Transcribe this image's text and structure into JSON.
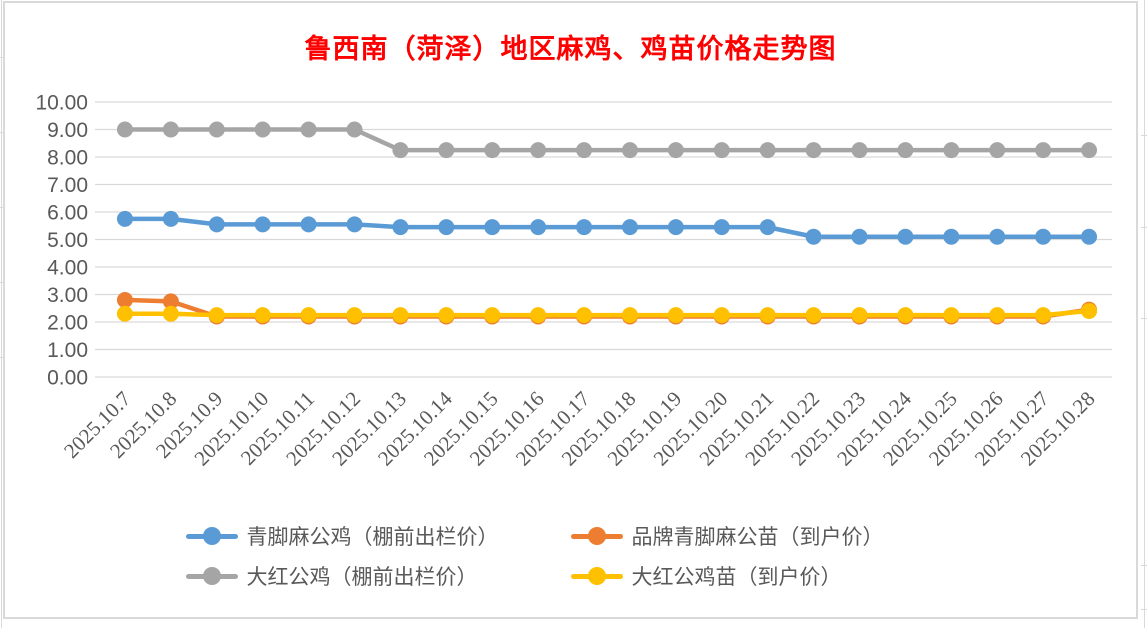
{
  "title": {
    "text": "鲁西南（菏泽）地区麻鸡、鸡苗价格走势图",
    "color": "#FF0000"
  },
  "chart_data": {
    "type": "line",
    "title": "鲁西南（菏泽）地区麻鸡、鸡苗价格走势图",
    "categories": [
      "2025.10.7",
      "2025.10.8",
      "2025.10.9",
      "2025.10.10",
      "2025.10.11",
      "2025.10.12",
      "2025.10.13",
      "2025.10.14",
      "2025.10.15",
      "2025.10.16",
      "2025.10.17",
      "2025.10.18",
      "2025.10.19",
      "2025.10.20",
      "2025.10.21",
      "2025.10.22",
      "2025.10.23",
      "2025.10.24",
      "2025.10.25",
      "2025.10.26",
      "2025.10.27",
      "2025.10.28"
    ],
    "series": [
      {
        "name": "青脚麻公鸡（棚前出栏价）",
        "color": "#5B9BD5",
        "values": [
          5.75,
          5.75,
          5.55,
          5.55,
          5.55,
          5.55,
          5.45,
          5.45,
          5.45,
          5.45,
          5.45,
          5.45,
          5.45,
          5.45,
          5.45,
          5.1,
          5.1,
          5.1,
          5.1,
          5.1,
          5.1,
          5.1
        ]
      },
      {
        "name": "品牌青脚麻公苗（到户价）",
        "color": "#ED7D31",
        "values": [
          2.8,
          2.75,
          2.2,
          2.2,
          2.2,
          2.2,
          2.2,
          2.2,
          2.2,
          2.2,
          2.2,
          2.2,
          2.2,
          2.2,
          2.2,
          2.2,
          2.2,
          2.2,
          2.2,
          2.2,
          2.2,
          2.45
        ]
      },
      {
        "name": "大红公鸡（棚前出栏价）",
        "color": "#A5A5A5",
        "values": [
          9.0,
          9.0,
          9.0,
          9.0,
          9.0,
          9.0,
          8.25,
          8.25,
          8.25,
          8.25,
          8.25,
          8.25,
          8.25,
          8.25,
          8.25,
          8.25,
          8.25,
          8.25,
          8.25,
          8.25,
          8.25,
          8.25
        ]
      },
      {
        "name": "大红公鸡苗（到户价）",
        "color": "#FFC000",
        "values": [
          2.3,
          2.3,
          2.25,
          2.25,
          2.25,
          2.25,
          2.25,
          2.25,
          2.25,
          2.25,
          2.25,
          2.25,
          2.25,
          2.25,
          2.25,
          2.25,
          2.25,
          2.25,
          2.25,
          2.25,
          2.25,
          2.4
        ]
      }
    ],
    "xlabel": "",
    "ylabel": "",
    "ylim": [
      0,
      10
    ],
    "ytick_step": 1,
    "ytick_labels": [
      "0.00",
      "1.00",
      "2.00",
      "3.00",
      "4.00",
      "5.00",
      "6.00",
      "7.00",
      "8.00",
      "9.00",
      "10.00"
    ],
    "grid": true,
    "legend_position": "bottom",
    "marker": "circle",
    "axis_text_color": "#595959",
    "gridline_color": "#D9D9D9",
    "x_label_rotation": -45
  }
}
